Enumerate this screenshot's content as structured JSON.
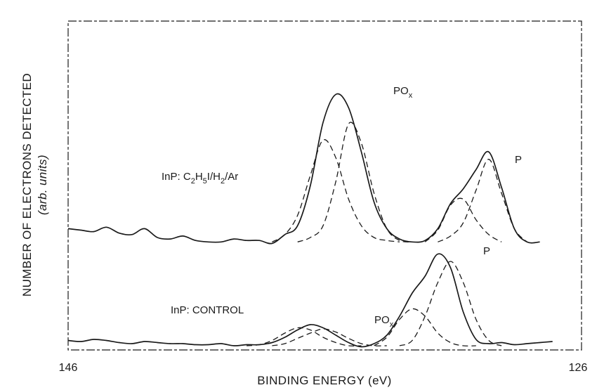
{
  "chart_data": {
    "type": "line",
    "xlabel": "BINDING ENERGY (eV)",
    "ylabel": "NUMBER OF ELECTRONS DETECTED",
    "ylabel_sub": "(arb. units)",
    "x_tick_labels": [
      "146",
      "126"
    ],
    "xlim": [
      146,
      126
    ],
    "x_reversed": true,
    "grid": false,
    "legend": "none",
    "spectra": [
      {
        "label_main": "InP: C",
        "label_sub1": "2",
        "label_mid1": "H",
        "label_sub2": "5",
        "label_mid2": "I/H",
        "label_sub3": "2",
        "label_end": "/Ar",
        "annotations": [
          {
            "main": "PO",
            "sub": "x",
            "x": 135.5,
            "y": 0.92
          },
          {
            "main": "P",
            "x": 129.5,
            "y": 0.56
          }
        ],
        "x": [
          146,
          145.5,
          145,
          144.5,
          144,
          143.5,
          143,
          142.5,
          142,
          141.5,
          141,
          140.5,
          140,
          139.5,
          139,
          138.5,
          138,
          137.5,
          137,
          136.5,
          136,
          135.5,
          135,
          134.5,
          134,
          133.5,
          133,
          132.5,
          132,
          131.5,
          131,
          130.5,
          130,
          129.5,
          129,
          128.5,
          128,
          127.5
        ],
        "y": [
          0.06,
          0.05,
          0.04,
          0.07,
          0.03,
          0.02,
          0.06,
          0.0,
          -0.01,
          0.01,
          -0.02,
          -0.03,
          -0.03,
          -0.01,
          -0.02,
          -0.02,
          -0.04,
          0.02,
          0.08,
          0.35,
          0.78,
          0.97,
          0.88,
          0.58,
          0.24,
          0.06,
          -0.01,
          -0.03,
          -0.02,
          0.06,
          0.23,
          0.33,
          0.46,
          0.58,
          0.34,
          0.06,
          -0.03,
          -0.03
        ],
        "components": [
          {
            "x": [
              138,
              137.5,
              137,
              136.5,
              136,
              135.5,
              135,
              134.5,
              134,
              133.5,
              133
            ],
            "y": [
              -0.03,
              0.02,
              0.15,
              0.42,
              0.66,
              0.54,
              0.26,
              0.08,
              0.0,
              -0.02,
              -0.03
            ]
          },
          {
            "x": [
              137,
              136.5,
              136,
              135.5,
              135,
              134.5,
              134,
              133.5,
              133,
              132.5
            ],
            "y": [
              -0.03,
              0.0,
              0.08,
              0.38,
              0.77,
              0.64,
              0.3,
              0.06,
              -0.02,
              -0.03
            ]
          },
          {
            "x": [
              132,
              131.5,
              131,
              130.5,
              130,
              129.5,
              129
            ],
            "y": [
              -0.03,
              0.05,
              0.22,
              0.26,
              0.12,
              0.02,
              -0.03
            ]
          },
          {
            "x": [
              131.5,
              131,
              130.5,
              130,
              129.5,
              129,
              128.5,
              128
            ],
            "y": [
              -0.03,
              0.01,
              0.1,
              0.32,
              0.53,
              0.3,
              0.06,
              -0.03
            ]
          }
        ]
      },
      {
        "label": "InP: CONTROL",
        "annotations": [
          {
            "main": "PO",
            "sub": "x",
            "x": 135.0,
            "y": 0.22
          },
          {
            "main": "P",
            "x": 130.9,
            "y": 0.8
          }
        ],
        "x": [
          146,
          145.5,
          145,
          144.5,
          144,
          143.5,
          143,
          142.5,
          142,
          141.5,
          141,
          140.5,
          140,
          139.5,
          139,
          138.5,
          138,
          137.5,
          137,
          136.5,
          136,
          135.5,
          135,
          134.5,
          134,
          133.5,
          133,
          132.5,
          132,
          131.5,
          131,
          130.5,
          130,
          129.5,
          129,
          128.5,
          128,
          127.5,
          127
        ],
        "y": [
          0.05,
          0.04,
          0.06,
          0.05,
          0.03,
          0.02,
          0.04,
          0.03,
          0.02,
          0.02,
          0.01,
          0.01,
          0.02,
          0.0,
          0.01,
          0.01,
          0.03,
          0.08,
          0.15,
          0.2,
          0.17,
          0.1,
          0.03,
          -0.01,
          0.02,
          0.1,
          0.28,
          0.5,
          0.66,
          0.87,
          0.74,
          0.32,
          0.06,
          0.02,
          0.03,
          0.01,
          0.02,
          0.03,
          0.04
        ],
        "components": [
          {
            "x": [
              139,
              138.5,
              138,
              137.5,
              137,
              136.5,
              136,
              135.5,
              135,
              134.5
            ],
            "y": [
              0.0,
              0.01,
              0.05,
              0.12,
              0.17,
              0.15,
              0.08,
              0.03,
              0.0,
              0.0
            ]
          },
          {
            "x": [
              138,
              137.5,
              137,
              136.5,
              136,
              135.5,
              135,
              134.5,
              134,
              133.5
            ],
            "y": [
              0.0,
              0.02,
              0.07,
              0.12,
              0.16,
              0.13,
              0.07,
              0.02,
              0.0,
              0.0
            ]
          },
          {
            "x": [
              134,
              133.5,
              133,
              132.5,
              132,
              131.5,
              131,
              130.5,
              130
            ],
            "y": [
              0.0,
              0.08,
              0.25,
              0.35,
              0.28,
              0.12,
              0.03,
              0.0,
              0.0
            ]
          },
          {
            "x": [
              133,
              132.5,
              132,
              131.5,
              131,
              130.5,
              130,
              129.5,
              129
            ],
            "y": [
              0.0,
              0.05,
              0.28,
              0.6,
              0.8,
              0.6,
              0.25,
              0.05,
              0.0
            ]
          }
        ]
      }
    ]
  }
}
